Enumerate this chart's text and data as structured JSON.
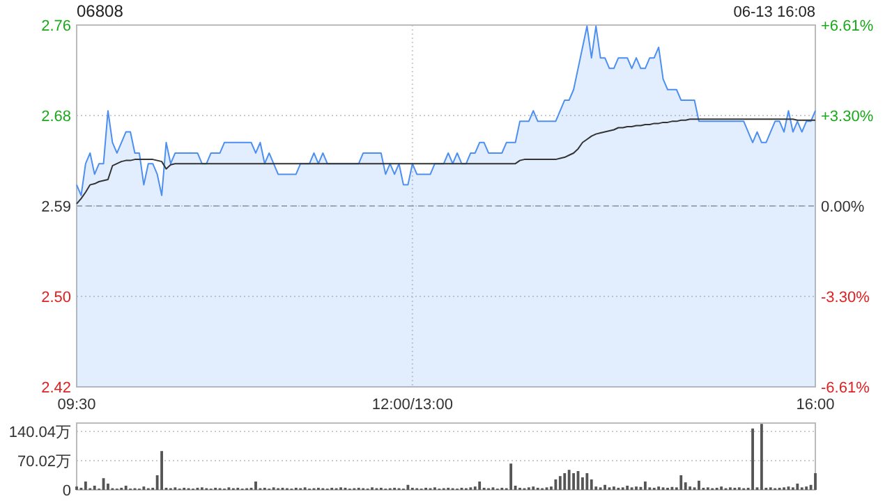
{
  "chart_data": [
    {
      "type": "area",
      "title": "06808",
      "subtitle": "06-13 16:08",
      "categories": [
        "09:30",
        null,
        null,
        null,
        null,
        null,
        null,
        null,
        null,
        null,
        null,
        null,
        null,
        null,
        null,
        null,
        null,
        null,
        null,
        null,
        null,
        null,
        null,
        null,
        null,
        null,
        null,
        null,
        null,
        null,
        null,
        null,
        null,
        null,
        null,
        null,
        null,
        null,
        null,
        null,
        null,
        null,
        null,
        null,
        null,
        null,
        null,
        null,
        null,
        null,
        null,
        null,
        null,
        null,
        null,
        null,
        null,
        null,
        null,
        null,
        null,
        null,
        null,
        null,
        null,
        null,
        null,
        null,
        null,
        null,
        null,
        null,
        null,
        null,
        null,
        "12:00/13:00",
        null,
        null,
        null,
        null,
        null,
        null,
        null,
        null,
        null,
        null,
        null,
        null,
        null,
        null,
        null,
        null,
        null,
        null,
        null,
        null,
        null,
        null,
        null,
        null,
        null,
        null,
        null,
        null,
        null,
        null,
        null,
        null,
        null,
        null,
        null,
        null,
        null,
        null,
        null,
        null,
        null,
        null,
        null,
        null,
        null,
        null,
        null,
        null,
        null,
        null,
        null,
        null,
        null,
        null,
        null,
        null,
        null,
        null,
        null,
        null,
        null,
        null,
        null,
        null,
        null,
        null,
        null,
        null,
        null,
        null,
        null,
        null,
        null,
        null,
        null,
        null,
        null,
        null,
        null,
        null,
        null,
        null,
        null,
        null,
        null,
        null,
        null,
        null,
        null,
        "16:00"
      ],
      "ylim": [
        2.419,
        2.761
      ],
      "yticks": [
        {
          "value": 2.761,
          "label": "2.76"
        },
        {
          "value": 2.6755,
          "label": "2.68"
        },
        {
          "value": 2.59,
          "label": "2.59"
        },
        {
          "value": 2.5045,
          "label": "2.50"
        },
        {
          "value": 2.419,
          "label": "2.42"
        }
      ],
      "y2lim": [
        -6.61,
        6.61
      ],
      "y2ticks": [
        {
          "value": 6.61,
          "label": "+6.61%"
        },
        {
          "value": 3.3,
          "label": "+3.30%"
        },
        {
          "value": 0,
          "label": "0.00%"
        },
        {
          "value": -3.3,
          "label": "-3.30%"
        },
        {
          "value": -6.61,
          "label": "-6.61%"
        }
      ],
      "grid": true,
      "ref_lines": [
        {
          "axis": "y",
          "value": 2.59,
          "color": "#aaaaaa",
          "line_style": "dashed"
        }
      ],
      "series": [
        {
          "color": "#4d8ff0",
          "values": [
            2.61,
            2.6,
            2.63,
            2.64,
            2.62,
            2.63,
            2.63,
            2.68,
            2.65,
            2.64,
            2.65,
            2.66,
            2.66,
            2.64,
            2.64,
            2.61,
            2.63,
            2.63,
            2.62,
            2.6,
            2.65,
            2.63,
            2.64,
            2.64,
            2.64,
            2.64,
            2.64,
            2.64,
            2.63,
            2.63,
            2.64,
            2.64,
            2.64,
            2.65,
            2.65,
            2.65,
            2.65,
            2.65,
            2.65,
            2.65,
            2.64,
            2.65,
            2.63,
            2.64,
            2.63,
            2.62,
            2.62,
            2.62,
            2.62,
            2.62,
            2.63,
            2.63,
            2.63,
            2.64,
            2.63,
            2.64,
            2.63,
            2.63,
            2.63,
            2.63,
            2.63,
            2.63,
            2.63,
            2.63,
            2.64,
            2.64,
            2.64,
            2.64,
            2.64,
            2.62,
            2.63,
            2.62,
            2.63,
            2.61,
            2.61,
            2.63,
            2.62,
            2.62,
            2.62,
            2.62,
            2.63,
            2.63,
            2.63,
            2.64,
            2.63,
            2.64,
            2.63,
            2.63,
            2.64,
            2.64,
            2.65,
            2.65,
            2.64,
            2.64,
            2.64,
            2.64,
            2.65,
            2.65,
            2.65,
            2.67,
            2.67,
            2.67,
            2.68,
            2.67,
            2.67,
            2.67,
            2.67,
            2.67,
            2.68,
            2.69,
            2.69,
            2.7,
            2.72,
            2.74,
            2.76,
            2.73,
            2.76,
            2.73,
            2.73,
            2.72,
            2.72,
            2.73,
            2.73,
            2.73,
            2.72,
            2.73,
            2.72,
            2.72,
            2.73,
            2.73,
            2.74,
            2.71,
            2.7,
            2.7,
            2.7,
            2.69,
            2.69,
            2.69,
            2.69,
            2.67,
            2.67,
            2.67,
            2.67,
            2.67,
            2.67,
            2.67,
            2.67,
            2.67,
            2.67,
            2.67,
            2.66,
            2.65,
            2.66,
            2.65,
            2.65,
            2.66,
            2.67,
            2.67,
            2.66,
            2.68,
            2.66,
            2.67,
            2.66,
            2.67,
            2.67,
            2.68
          ]
        },
        {
          "type": "line",
          "color": "#333333",
          "values": [
            2.592,
            2.597,
            2.603,
            2.61,
            2.611,
            2.613,
            2.614,
            2.615,
            2.628,
            2.63,
            2.632,
            2.633,
            2.633,
            2.634,
            2.634,
            2.634,
            2.634,
            2.634,
            2.633,
            2.632,
            2.625,
            2.629,
            2.63,
            2.63,
            2.63,
            2.63,
            2.63,
            2.63,
            2.63,
            2.63,
            2.63,
            2.63,
            2.63,
            2.63,
            2.63,
            2.63,
            2.63,
            2.63,
            2.63,
            2.63,
            2.63,
            2.63,
            2.63,
            2.63,
            2.63,
            2.63,
            2.63,
            2.63,
            2.63,
            2.63,
            2.63,
            2.63,
            2.63,
            2.63,
            2.63,
            2.63,
            2.63,
            2.63,
            2.63,
            2.63,
            2.63,
            2.63,
            2.63,
            2.63,
            2.63,
            2.63,
            2.63,
            2.63,
            2.63,
            2.63,
            2.63,
            2.63,
            2.63,
            2.63,
            2.63,
            2.63,
            2.63,
            2.63,
            2.63,
            2.63,
            2.63,
            2.63,
            2.63,
            2.63,
            2.63,
            2.63,
            2.63,
            2.63,
            2.63,
            2.63,
            2.63,
            2.63,
            2.63,
            2.63,
            2.63,
            2.63,
            2.63,
            2.63,
            2.63,
            2.633,
            2.634,
            2.634,
            2.634,
            2.634,
            2.634,
            2.634,
            2.634,
            2.634,
            2.635,
            2.636,
            2.638,
            2.64,
            2.644,
            2.65,
            2.653,
            2.656,
            2.658,
            2.659,
            2.66,
            2.661,
            2.662,
            2.664,
            2.664,
            2.665,
            2.665,
            2.666,
            2.666,
            2.667,
            2.667,
            2.668,
            2.668,
            2.669,
            2.669,
            2.67,
            2.67,
            2.671,
            2.671,
            2.672,
            2.672,
            2.672,
            2.672,
            2.672,
            2.672,
            2.672,
            2.672,
            2.672,
            2.672,
            2.672,
            2.672,
            2.672,
            2.672,
            2.672,
            2.672,
            2.672,
            2.672,
            2.672,
            2.672,
            2.672,
            2.672,
            2.672,
            2.672,
            2.671,
            2.671,
            2.671,
            2.671,
            2.671
          ]
        }
      ]
    },
    {
      "type": "bar",
      "categories": [
        null,
        null,
        null,
        null,
        null,
        null,
        null,
        null,
        null,
        null,
        null,
        null,
        null,
        null,
        null,
        null,
        null,
        null,
        null,
        null,
        null,
        null,
        null,
        null,
        null,
        null,
        null,
        null,
        null,
        null,
        null,
        null,
        null,
        null,
        null,
        null,
        null,
        null,
        null,
        null,
        null,
        null,
        null,
        null,
        null,
        null,
        null,
        null,
        null,
        null,
        null,
        null,
        null,
        null,
        null,
        null,
        null,
        null,
        null,
        null,
        null,
        null,
        null,
        null,
        null,
        null,
        null,
        null,
        null,
        null,
        null,
        null,
        null,
        null,
        null,
        null,
        null,
        null,
        null,
        null,
        null,
        null,
        null,
        null,
        null,
        null,
        null,
        null,
        null,
        null,
        null,
        null,
        null,
        null,
        null,
        null,
        null,
        null,
        null,
        null,
        null,
        null,
        null,
        null,
        null,
        null,
        null,
        null,
        null,
        null,
        null,
        null,
        null,
        null,
        null,
        null,
        null,
        null,
        null,
        null,
        null,
        null,
        null,
        null,
        null,
        null,
        null,
        null,
        null,
        null,
        null,
        null,
        null,
        null,
        null,
        null,
        null,
        null,
        null,
        null,
        null,
        null,
        null,
        null,
        null,
        null,
        null,
        null,
        null,
        null,
        null,
        null,
        null,
        null,
        null,
        null,
        null,
        null,
        null,
        null,
        null,
        null,
        null,
        null,
        null,
        null
      ],
      "ylim": [
        0,
        160
      ],
      "yticks": [
        0,
        {
          "value": 70.02,
          "label": "70.02万"
        },
        {
          "value": 140.04,
          "label": "140.04万"
        }
      ],
      "tick_labels": "y",
      "grid": "y",
      "series": [
        {
          "color": "#555555",
          "values": [
            8,
            5,
            20,
            4,
            10,
            3,
            28,
            15,
            4,
            3,
            5,
            10,
            3,
            4,
            3,
            8,
            4,
            5,
            35,
            93,
            5,
            4,
            6,
            3,
            5,
            4,
            3,
            5,
            6,
            4,
            3,
            5,
            4,
            3,
            6,
            4,
            5,
            3,
            4,
            5,
            20,
            4,
            5,
            3,
            6,
            4,
            5,
            4,
            3,
            5,
            4,
            6,
            3,
            4,
            5,
            4,
            3,
            5,
            4,
            6,
            5,
            3,
            4,
            5,
            4,
            3,
            6,
            4,
            5,
            3,
            4,
            5,
            4,
            3,
            12,
            5,
            4,
            3,
            5,
            4,
            6,
            3,
            4,
            5,
            4,
            3,
            5,
            4,
            6,
            8,
            20,
            5,
            4,
            6,
            3,
            5,
            4,
            63,
            10,
            5,
            4,
            6,
            8,
            5,
            4,
            6,
            8,
            25,
            33,
            40,
            48,
            40,
            45,
            30,
            40,
            25,
            8,
            6,
            12,
            6,
            8,
            5,
            6,
            10,
            6,
            8,
            7,
            20,
            6,
            5,
            8,
            6,
            5,
            7,
            6,
            35,
            18,
            8,
            6,
            22,
            5,
            6,
            4,
            5,
            8,
            4,
            6,
            5,
            6,
            4,
            5,
            147,
            6,
            158,
            5,
            6,
            4,
            5,
            6,
            8,
            6,
            15,
            6,
            8,
            12,
            40
          ]
        }
      ]
    }
  ]
}
